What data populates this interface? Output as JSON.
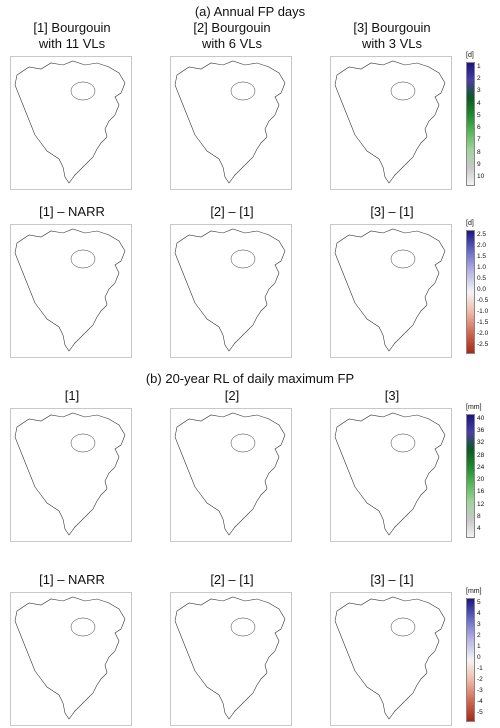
{
  "figure": {
    "section_a_title": "(a) Annual FP days",
    "section_b_title": "(b) 20-year RL of daily maximum FP"
  },
  "chart_data": [
    {
      "type": "heatmap",
      "title": "[1] Bourgouin\nwith 11 VLs",
      "units": "[d]",
      "colorbar_ticks": [
        "1",
        "2",
        "3",
        "4",
        "5",
        "6",
        "7",
        "8",
        "9",
        "10"
      ],
      "colormap": [
        "#f2f2f2",
        "#c8c8c8",
        "#9fd49a",
        "#5cb85a",
        "#1f8a2f",
        "#0b5a1e",
        "#4a3ea8",
        "#1b1580"
      ]
    },
    {
      "type": "heatmap",
      "title": "[2] Bourgouin\nwith 6 VLs",
      "units": "[d]",
      "colorbar_ticks": [
        "1",
        "2",
        "3",
        "4",
        "5",
        "6",
        "7",
        "8",
        "9",
        "10"
      ],
      "colormap": [
        "#f2f2f2",
        "#c8c8c8",
        "#9fd49a",
        "#5cb85a",
        "#1f8a2f",
        "#0b5a1e",
        "#4a3ea8",
        "#1b1580"
      ]
    },
    {
      "type": "heatmap",
      "title": "[3] Bourgouin\nwith 3 VLs",
      "units": "[d]",
      "colorbar_ticks": [
        "1",
        "2",
        "3",
        "4",
        "5",
        "6",
        "7",
        "8",
        "9",
        "10"
      ],
      "colormap": [
        "#f2f2f2",
        "#c8c8c8",
        "#9fd49a",
        "#5cb85a",
        "#1f8a2f",
        "#0b5a1e",
        "#4a3ea8",
        "#1b1580"
      ]
    },
    {
      "type": "heatmap",
      "title": "[1] – NARR",
      "units": "[d]",
      "colorbar_ticks": [
        "2.5",
        "2.0",
        "1.5",
        "1.0",
        "0.5",
        "0.0",
        "-0.5",
        "-1.0",
        "-1.5",
        "-2.0",
        "-2.5"
      ],
      "colormap": [
        "#1b1580",
        "#6a6ac8",
        "#b8b4e4",
        "#f5f5f5",
        "#f0b8a8",
        "#d06a50",
        "#a8281a"
      ]
    },
    {
      "type": "heatmap",
      "title": "[2] – [1]",
      "units": "[d]",
      "colorbar_ticks": [
        "2.5",
        "2.0",
        "1.5",
        "1.0",
        "0.5",
        "0.0",
        "-0.5",
        "-1.0",
        "-1.5",
        "-2.0",
        "-2.5"
      ],
      "colormap": [
        "#1b1580",
        "#6a6ac8",
        "#b8b4e4",
        "#f5f5f5",
        "#f0b8a8",
        "#d06a50",
        "#a8281a"
      ]
    },
    {
      "type": "heatmap",
      "title": "[3] – [1]",
      "units": "[d]",
      "colorbar_ticks": [
        "2.5",
        "2.0",
        "1.5",
        "1.0",
        "0.5",
        "0.0",
        "-0.5",
        "-1.0",
        "-1.5",
        "-2.0",
        "-2.5"
      ],
      "colormap": [
        "#1b1580",
        "#6a6ac8",
        "#b8b4e4",
        "#f5f5f5",
        "#f0b8a8",
        "#d06a50",
        "#a8281a"
      ]
    },
    {
      "type": "heatmap",
      "title": "[1]",
      "units": "[mm]",
      "colorbar_ticks": [
        "40",
        "36",
        "32",
        "28",
        "24",
        "20",
        "16",
        "12",
        "8",
        "4"
      ],
      "colormap": [
        "#f2f2f2",
        "#c8c8c8",
        "#9fd49a",
        "#5cb85a",
        "#1f8a2f",
        "#0b5a1e",
        "#4a3ea8",
        "#1b1580"
      ]
    },
    {
      "type": "heatmap",
      "title": "[2]",
      "units": "[mm]",
      "colorbar_ticks": [
        "40",
        "36",
        "32",
        "28",
        "24",
        "20",
        "16",
        "12",
        "8",
        "4"
      ],
      "colormap": [
        "#f2f2f2",
        "#c8c8c8",
        "#9fd49a",
        "#5cb85a",
        "#1f8a2f",
        "#0b5a1e",
        "#4a3ea8",
        "#1b1580"
      ]
    },
    {
      "type": "heatmap",
      "title": "[3]",
      "units": "[mm]",
      "colorbar_ticks": [
        "40",
        "36",
        "32",
        "28",
        "24",
        "20",
        "16",
        "12",
        "8",
        "4"
      ],
      "colormap": [
        "#f2f2f2",
        "#c8c8c8",
        "#9fd49a",
        "#5cb85a",
        "#1f8a2f",
        "#0b5a1e",
        "#4a3ea8",
        "#1b1580"
      ]
    },
    {
      "type": "heatmap",
      "title": "[1] – NARR",
      "units": "[mm]",
      "colorbar_ticks": [
        "5",
        "4",
        "3",
        "2",
        "1",
        "0",
        "-1",
        "-2",
        "-3",
        "-4",
        "-5"
      ],
      "colormap": [
        "#1b1580",
        "#6a6ac8",
        "#b8b4e4",
        "#f5f5f5",
        "#f0b8a8",
        "#d06a50",
        "#a8281a"
      ]
    },
    {
      "type": "heatmap",
      "title": "[2] – [1]",
      "units": "[mm]",
      "colorbar_ticks": [
        "5",
        "4",
        "3",
        "2",
        "1",
        "0",
        "-1",
        "-2",
        "-3",
        "-4",
        "-5"
      ],
      "colormap": [
        "#1b1580",
        "#6a6ac8",
        "#b8b4e4",
        "#f5f5f5",
        "#f0b8a8",
        "#d06a50",
        "#a8281a"
      ]
    },
    {
      "type": "heatmap",
      "title": "[3] – [1]",
      "units": "[mm]",
      "colorbar_ticks": [
        "5",
        "4",
        "3",
        "2",
        "1",
        "0",
        "-1",
        "-2",
        "-3",
        "-4",
        "-5"
      ],
      "colormap": [
        "#1b1580",
        "#6a6ac8",
        "#b8b4e4",
        "#f5f5f5",
        "#f0b8a8",
        "#d06a50",
        "#a8281a"
      ]
    }
  ]
}
